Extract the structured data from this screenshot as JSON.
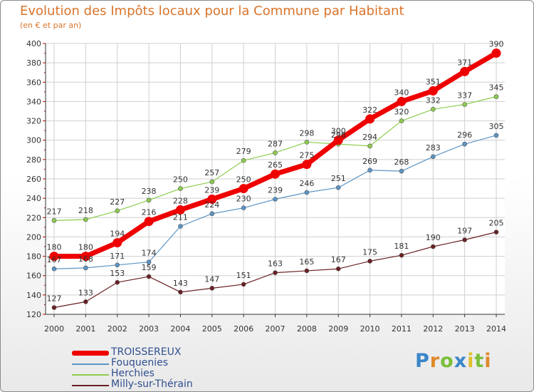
{
  "title": "Evolution des Impôts locaux pour la Commune par Habitant",
  "subtitle": "(en € et par an)",
  "colors": {
    "title": "#d9742a",
    "axis": "#333333",
    "grid": "#cfcfcf",
    "tick_mark": "#cc0000"
  },
  "chart_data": {
    "type": "line",
    "title": "Evolution des Impôts locaux pour la Commune par Habitant",
    "ylabel": "(en € et par an)",
    "xlabel": "",
    "ylim": [
      120,
      400
    ],
    "yticks": [
      120,
      140,
      160,
      180,
      200,
      220,
      240,
      260,
      280,
      300,
      320,
      340,
      360,
      380,
      400
    ],
    "x": [
      2000,
      2001,
      2002,
      2003,
      2004,
      2005,
      2006,
      2007,
      2008,
      2009,
      2010,
      2011,
      2012,
      2013,
      2014
    ],
    "grid": true,
    "series": [
      {
        "name": "Fouquenies",
        "color": "#5b95c6",
        "line_class": "thin",
        "values": [
          167,
          168,
          171,
          174,
          211,
          224,
          230,
          239,
          246,
          251,
          269,
          268,
          283,
          296,
          305
        ]
      },
      {
        "name": "Herchies",
        "color": "#8dcc4e",
        "line_class": "thin",
        "values": [
          217,
          218,
          227,
          238,
          250,
          257,
          279,
          287,
          298,
          296,
          294,
          320,
          332,
          337,
          345
        ]
      },
      {
        "name": "Milly-sur-Thérain",
        "color": "#6b1f23",
        "line_class": "thin",
        "values": [
          127,
          133,
          153,
          159,
          143,
          147,
          151,
          163,
          165,
          167,
          175,
          181,
          190,
          197,
          205
        ]
      },
      {
        "name": "TROISSEREUX",
        "color": "#ee0000",
        "line_class": "thick",
        "values": [
          180,
          180,
          194,
          216,
          228,
          239,
          250,
          265,
          275,
          300,
          322,
          340,
          351,
          371,
          390
        ]
      }
    ]
  },
  "legend": [
    {
      "label": "TROISSEREUX",
      "color": "#ee0000",
      "thick": true
    },
    {
      "label": "Fouquenies",
      "color": "#5b95c6",
      "thick": false
    },
    {
      "label": "Herchies",
      "color": "#8dcc4e",
      "thick": false
    },
    {
      "label": "Milly-sur-Thérain",
      "color": "#6b1f23",
      "thick": false
    }
  ],
  "logo": {
    "text": "Proxiti",
    "letters": [
      {
        "ch": "P",
        "color": "#3b86c8"
      },
      {
        "ch": "r",
        "color": "#e08a2a"
      },
      {
        "ch": "o",
        "color": "#7bbf3a"
      },
      {
        "ch": "x",
        "color": "#3b86c8"
      },
      {
        "ch": "i",
        "color": "#e0c02a"
      },
      {
        "ch": "t",
        "color": "#7bbf3a"
      },
      {
        "ch": "i",
        "color": "#e08a2a"
      }
    ]
  }
}
